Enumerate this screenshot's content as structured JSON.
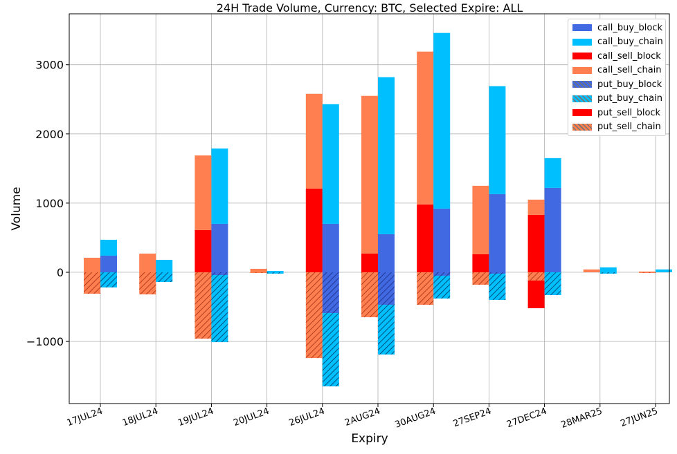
{
  "chart_data": {
    "type": "bar",
    "title": "24H Trade Volume, Currency: BTC, Selected Expire: ALL",
    "xlabel": "Expiry",
    "ylabel": "Volume",
    "ylim": [
      -1900,
      3750
    ],
    "yticks": [
      -1000,
      0,
      1000,
      2000,
      3000
    ],
    "ytick_labels": [
      "−1000",
      "0",
      "1000",
      "2000",
      "3000"
    ],
    "grid": true,
    "legend_position": "top-right",
    "categories": [
      "17JUL24",
      "18JUL24",
      "19JUL24",
      "20JUL24",
      "26JUL24",
      "2AUG24",
      "30AUG24",
      "27SEP24",
      "27DEC24",
      "28MAR25",
      "27JUN25"
    ],
    "series": [
      {
        "name": "call_buy_block",
        "color": "#4169e1",
        "hatch": false,
        "group": "buy",
        "direction": "pos",
        "values": [
          240,
          0,
          700,
          0,
          700,
          550,
          920,
          1130,
          1220,
          0,
          0
        ]
      },
      {
        "name": "call_buy_chain",
        "color": "#00bfff",
        "hatch": false,
        "group": "buy",
        "direction": "pos",
        "values": [
          230,
          180,
          1090,
          20,
          1730,
          2270,
          2540,
          1560,
          430,
          70,
          40
        ]
      },
      {
        "name": "call_sell_block",
        "color": "#ff0000",
        "hatch": false,
        "group": "sell",
        "direction": "pos",
        "values": [
          0,
          0,
          610,
          0,
          1210,
          270,
          980,
          260,
          830,
          0,
          0
        ]
      },
      {
        "name": "call_sell_chain",
        "color": "#ff7f50",
        "hatch": false,
        "group": "sell",
        "direction": "pos",
        "values": [
          210,
          270,
          1080,
          50,
          1370,
          2280,
          2210,
          990,
          220,
          40,
          10
        ]
      },
      {
        "name": "put_buy_block",
        "color": "#4169e1",
        "hatch": true,
        "group": "buy",
        "direction": "neg",
        "values": [
          0,
          0,
          40,
          0,
          590,
          470,
          50,
          20,
          0,
          0,
          0
        ]
      },
      {
        "name": "put_buy_chain",
        "color": "#00bfff",
        "hatch": true,
        "group": "buy",
        "direction": "neg",
        "values": [
          220,
          140,
          970,
          20,
          1060,
          720,
          330,
          380,
          330,
          20,
          0
        ]
      },
      {
        "name": "put_sell_block",
        "color": "#ff0000",
        "hatch": false,
        "group": "sell",
        "direction": "neg",
        "values": [
          0,
          0,
          0,
          0,
          0,
          0,
          0,
          0,
          400,
          0,
          0
        ]
      },
      {
        "name": "put_sell_chain",
        "color": "#ff7f50",
        "hatch": true,
        "group": "sell",
        "direction": "neg",
        "values": [
          310,
          320,
          960,
          10,
          1240,
          650,
          470,
          180,
          120,
          0,
          10
        ]
      }
    ]
  }
}
